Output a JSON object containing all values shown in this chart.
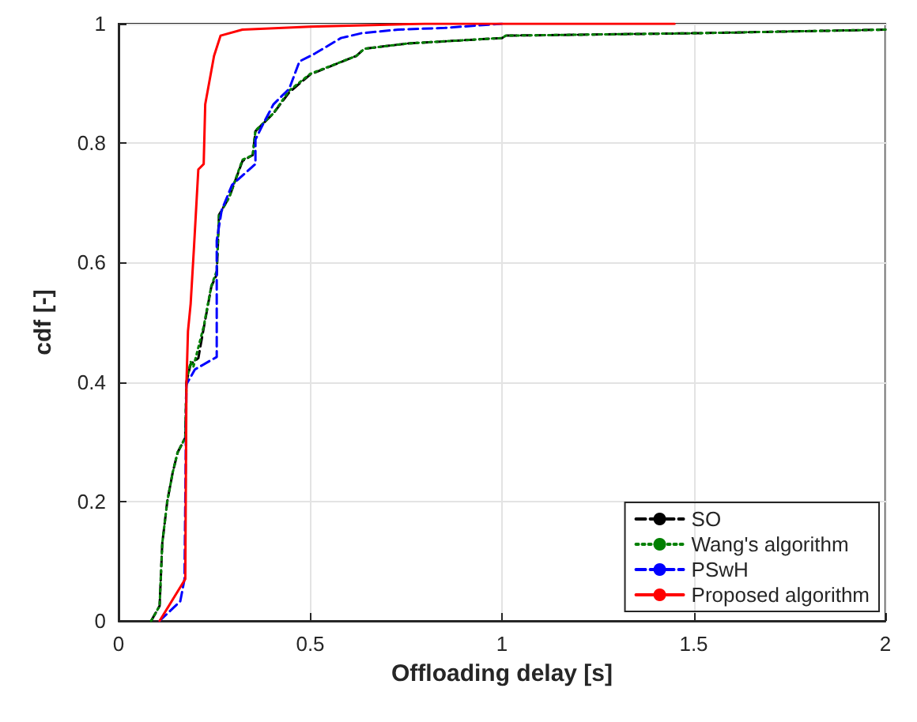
{
  "chart_data": {
    "type": "line",
    "xlabel": "Offloading delay [s]",
    "ylabel": "cdf [-]",
    "xlim": [
      0,
      2
    ],
    "xticks": [
      0,
      0.5,
      1,
      1.5,
      2
    ],
    "ylim": [
      0,
      1
    ],
    "yticks": [
      0,
      0.2,
      0.4,
      0.6,
      0.8,
      1
    ],
    "grid": true,
    "legend": "bottom right",
    "marker": "none",
    "series": [
      {
        "name": "SO",
        "color": "#000000",
        "line_style": "dashed",
        "x": [
          0.085,
          0.107,
          0.114,
          0.127,
          0.141,
          0.154,
          0.174,
          0.177,
          0.188,
          0.208,
          0.222,
          0.242,
          0.256,
          0.262,
          0.289,
          0.323,
          0.35,
          0.357,
          0.404,
          0.445,
          0.5,
          0.62,
          0.641,
          0.755,
          1.0,
          1.01,
          1.5,
          2.0
        ],
        "values": [
          0,
          0.025,
          0.13,
          0.2,
          0.248,
          0.282,
          0.307,
          0.4,
          0.43,
          0.44,
          0.49,
          0.56,
          0.58,
          0.68,
          0.71,
          0.77,
          0.78,
          0.82,
          0.85,
          0.885,
          0.915,
          0.946,
          0.958,
          0.967,
          0.976,
          0.98,
          0.984,
          0.99
        ]
      },
      {
        "name": "Wang's algorithm",
        "color": "#008000",
        "line_style": "dotted",
        "x": [
          0.085,
          0.107,
          0.114,
          0.127,
          0.141,
          0.154,
          0.174,
          0.177,
          0.188,
          0.195,
          0.222,
          0.242,
          0.256,
          0.262,
          0.289,
          0.323,
          0.35,
          0.357,
          0.404,
          0.445,
          0.5,
          0.62,
          0.641,
          0.755,
          1.0,
          1.01,
          1.5,
          2.0
        ],
        "values": [
          0,
          0.025,
          0.13,
          0.2,
          0.248,
          0.282,
          0.307,
          0.4,
          0.434,
          0.425,
          0.493,
          0.561,
          0.586,
          0.679,
          0.71,
          0.772,
          0.78,
          0.821,
          0.85,
          0.888,
          0.916,
          0.946,
          0.958,
          0.967,
          0.976,
          0.98,
          0.984,
          0.99
        ]
      },
      {
        "name": "PSwH",
        "color": "#0000ff",
        "line_style": "dashed",
        "x": [
          0.107,
          0.161,
          0.172,
          0.177,
          0.199,
          0.256,
          0.256,
          0.269,
          0.296,
          0.357,
          0.357,
          0.377,
          0.404,
          0.445,
          0.472,
          0.512,
          0.58,
          0.633,
          0.729,
          0.851,
          1.0
        ],
        "values": [
          0,
          0.033,
          0.07,
          0.396,
          0.421,
          0.442,
          0.637,
          0.688,
          0.73,
          0.765,
          0.806,
          0.832,
          0.865,
          0.891,
          0.937,
          0.95,
          0.976,
          0.984,
          0.99,
          0.993,
          1
        ]
      },
      {
        "name": "Proposed algorithm",
        "color": "#ff0000",
        "line_style": "solid",
        "x": [
          0.107,
          0.174,
          0.177,
          0.181,
          0.188,
          0.197,
          0.208,
          0.222,
          0.226,
          0.249,
          0.266,
          0.323,
          0.5,
          0.8,
          1.45
        ],
        "values": [
          0,
          0.07,
          0.396,
          0.485,
          0.531,
          0.629,
          0.756,
          0.765,
          0.865,
          0.946,
          0.98,
          0.99,
          0.995,
          1,
          1
        ]
      }
    ]
  }
}
